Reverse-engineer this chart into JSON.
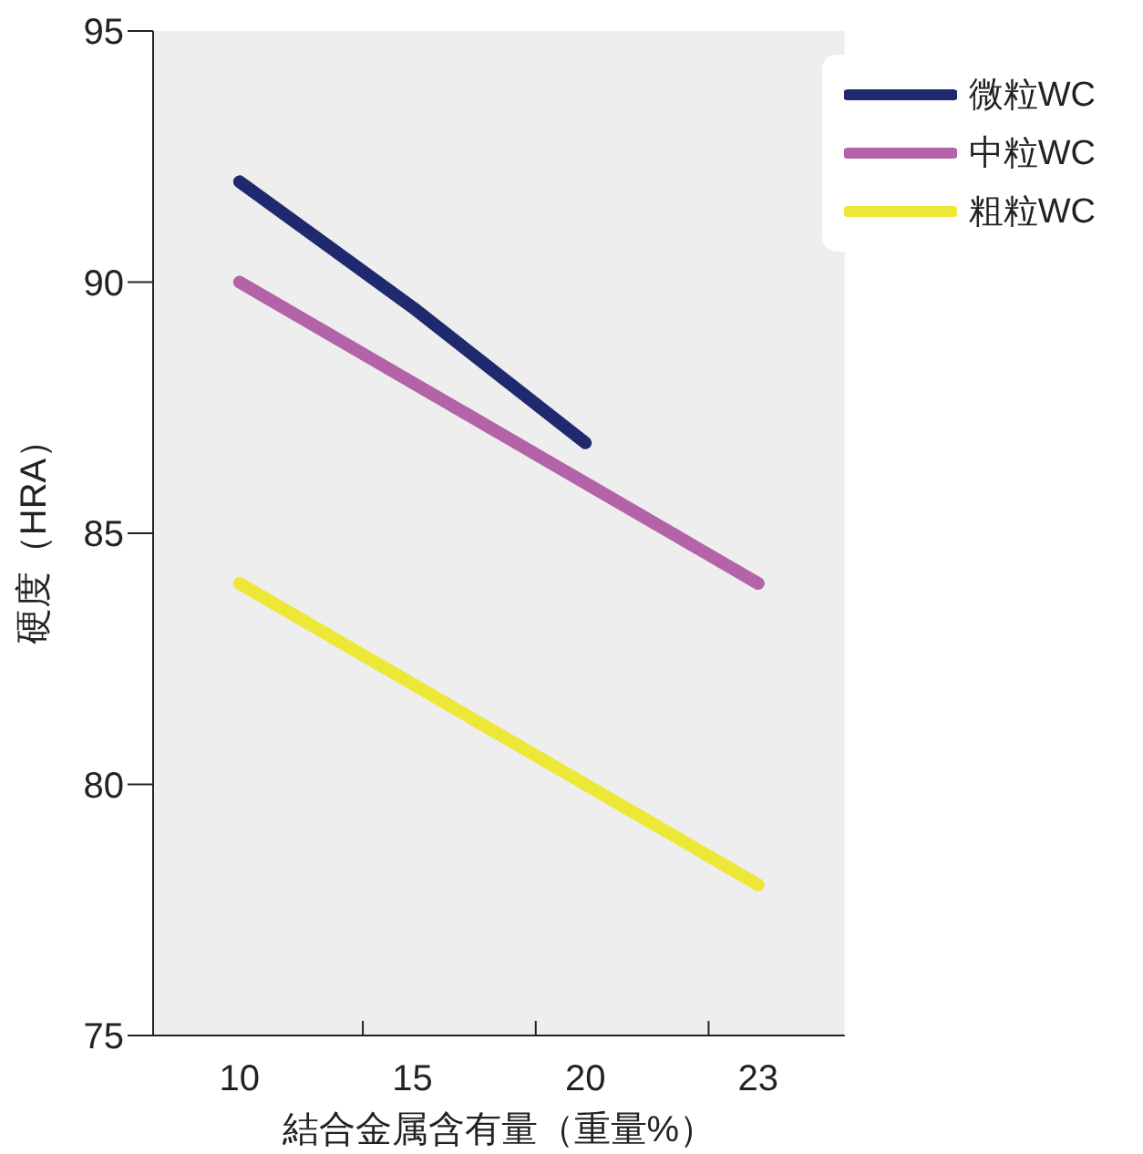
{
  "chart_data": {
    "type": "line",
    "xlabel": "結合金属含有量（重量%）",
    "ylabel": "硬度（HRA）",
    "categories": [
      "10",
      "15",
      "20",
      "23"
    ],
    "series": [
      {
        "name": "微粒WC",
        "color": "#1f2a6e",
        "values": [
          92,
          89.5,
          86.8,
          null
        ]
      },
      {
        "name": "中粒WC",
        "color": "#b563a8",
        "values": [
          90,
          88,
          86,
          84
        ]
      },
      {
        "name": "粗粒WC",
        "color": "#ede838",
        "values": [
          84,
          82,
          80,
          78
        ]
      }
    ],
    "ylim": [
      75,
      95
    ],
    "yticks": [
      75,
      80,
      85,
      90,
      95
    ],
    "grid": false,
    "legend": "top right",
    "marker": "none",
    "line_style": "solid"
  }
}
